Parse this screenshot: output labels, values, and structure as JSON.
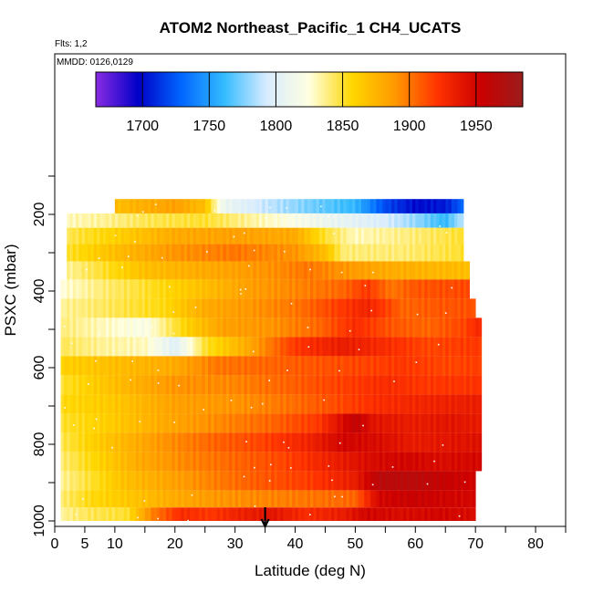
{
  "chart_data": {
    "type": "heatmap",
    "title": "ATOM2 Northeast_Pacific_1 CH4_UCATS",
    "flights_label": "Flts: 1,2",
    "dates_label": "MMDD: 0126,0129",
    "xlabel": "Latitude (deg N)",
    "ylabel": "PSXC (mbar)",
    "xlim": [
      0,
      85
    ],
    "ylim": [
      1000,
      100
    ],
    "x_ticks": [
      0,
      5,
      10,
      20,
      30,
      40,
      50,
      60,
      70,
      80
    ],
    "y_ticks": [
      200,
      400,
      600,
      800,
      1000
    ],
    "colorbar": {
      "range": [
        1665,
        1985
      ],
      "ticks": [
        1700,
        1750,
        1800,
        1850,
        1900,
        1950
      ],
      "colors": [
        "#8a2be2",
        "#0000c8",
        "#0066ff",
        "#33bbff",
        "#d8ecff",
        "#ffffe0",
        "#ffd700",
        "#ff9900",
        "#ff3300",
        "#cc0000",
        "#9b1c1c"
      ]
    },
    "arrow_latitude": 35,
    "rows": [
      {
        "p": 180,
        "lat": [
          10,
          68
        ],
        "vals": [
          [
            10,
            1870
          ],
          [
            15,
            1878
          ],
          [
            20,
            1885
          ],
          [
            25,
            1870
          ],
          [
            28,
            1810
          ],
          [
            35,
            1790
          ],
          [
            42,
            1775
          ],
          [
            50,
            1760
          ],
          [
            55,
            1720
          ],
          [
            60,
            1700
          ],
          [
            65,
            1705
          ],
          [
            68,
            1730
          ]
        ]
      },
      {
        "p": 215,
        "lat": [
          2,
          68
        ],
        "vals": [
          [
            2,
            1830
          ],
          [
            8,
            1835
          ],
          [
            15,
            1845
          ],
          [
            25,
            1850
          ],
          [
            35,
            1830
          ],
          [
            45,
            1810
          ],
          [
            55,
            1795
          ],
          [
            60,
            1780
          ],
          [
            65,
            1760
          ],
          [
            68,
            1790
          ]
        ]
      },
      {
        "p": 255,
        "lat": [
          2,
          68
        ],
        "vals": [
          [
            2,
            1845
          ],
          [
            10,
            1860
          ],
          [
            20,
            1880
          ],
          [
            30,
            1885
          ],
          [
            40,
            1880
          ],
          [
            45,
            1850
          ],
          [
            50,
            1830
          ],
          [
            60,
            1840
          ],
          [
            68,
            1850
          ]
        ]
      },
      {
        "p": 300,
        "lat": [
          2,
          68
        ],
        "vals": [
          [
            2,
            1850
          ],
          [
            10,
            1870
          ],
          [
            20,
            1890
          ],
          [
            30,
            1900
          ],
          [
            40,
            1890
          ],
          [
            45,
            1870
          ],
          [
            48,
            1840
          ],
          [
            58,
            1840
          ],
          [
            68,
            1850
          ]
        ]
      },
      {
        "p": 345,
        "lat": [
          2,
          69
        ],
        "vals": [
          [
            2,
            1835
          ],
          [
            8,
            1850
          ],
          [
            15,
            1870
          ],
          [
            25,
            1880
          ],
          [
            35,
            1890
          ],
          [
            42,
            1900
          ],
          [
            48,
            1890
          ],
          [
            55,
            1880
          ],
          [
            62,
            1875
          ],
          [
            69,
            1870
          ]
        ]
      },
      {
        "p": 395,
        "lat": [
          1,
          69
        ],
        "vals": [
          [
            1,
            1825
          ],
          [
            8,
            1840
          ],
          [
            15,
            1850
          ],
          [
            25,
            1870
          ],
          [
            32,
            1885
          ],
          [
            40,
            1895
          ],
          [
            48,
            1905
          ],
          [
            52,
            1920
          ],
          [
            56,
            1900
          ],
          [
            60,
            1910
          ],
          [
            69,
            1915
          ]
        ]
      },
      {
        "p": 445,
        "lat": [
          1,
          70
        ],
        "vals": [
          [
            1,
            1835
          ],
          [
            10,
            1845
          ],
          [
            18,
            1855
          ],
          [
            25,
            1880
          ],
          [
            33,
            1890
          ],
          [
            40,
            1900
          ],
          [
            46,
            1915
          ],
          [
            52,
            1930
          ],
          [
            58,
            1905
          ],
          [
            64,
            1910
          ],
          [
            70,
            1912
          ]
        ]
      },
      {
        "p": 495,
        "lat": [
          1,
          71
        ],
        "vals": [
          [
            1,
            1840
          ],
          [
            8,
            1830
          ],
          [
            15,
            1820
          ],
          [
            22,
            1860
          ],
          [
            28,
            1885
          ],
          [
            36,
            1890
          ],
          [
            44,
            1905
          ],
          [
            50,
            1925
          ],
          [
            56,
            1910
          ],
          [
            62,
            1905
          ],
          [
            68,
            1915
          ],
          [
            71,
            1930
          ]
        ]
      },
      {
        "p": 545,
        "lat": [
          1,
          71
        ],
        "vals": [
          [
            1,
            1845
          ],
          [
            8,
            1835
          ],
          [
            15,
            1830
          ],
          [
            20,
            1800
          ],
          [
            25,
            1850
          ],
          [
            32,
            1880
          ],
          [
            40,
            1920
          ],
          [
            48,
            1935
          ],
          [
            55,
            1925
          ],
          [
            62,
            1915
          ],
          [
            71,
            1920
          ]
        ]
      },
      {
        "p": 595,
        "lat": [
          1,
          71
        ],
        "vals": [
          [
            1,
            1860
          ],
          [
            10,
            1870
          ],
          [
            20,
            1880
          ],
          [
            27,
            1900
          ],
          [
            35,
            1905
          ],
          [
            43,
            1910
          ],
          [
            50,
            1915
          ],
          [
            58,
            1920
          ],
          [
            65,
            1915
          ],
          [
            71,
            1918
          ]
        ]
      },
      {
        "p": 645,
        "lat": [
          1,
          71
        ],
        "vals": [
          [
            1,
            1850
          ],
          [
            10,
            1870
          ],
          [
            20,
            1890
          ],
          [
            30,
            1895
          ],
          [
            38,
            1905
          ],
          [
            46,
            1915
          ],
          [
            55,
            1925
          ],
          [
            62,
            1920
          ],
          [
            71,
            1922
          ]
        ]
      },
      {
        "p": 695,
        "lat": [
          1,
          71
        ],
        "vals": [
          [
            1,
            1855
          ],
          [
            10,
            1865
          ],
          [
            20,
            1885
          ],
          [
            30,
            1890
          ],
          [
            38,
            1900
          ],
          [
            46,
            1912
          ],
          [
            54,
            1925
          ],
          [
            62,
            1930
          ],
          [
            71,
            1935
          ]
        ]
      },
      {
        "p": 745,
        "lat": [
          1,
          71
        ],
        "vals": [
          [
            1,
            1850
          ],
          [
            8,
            1860
          ],
          [
            18,
            1880
          ],
          [
            28,
            1895
          ],
          [
            36,
            1905
          ],
          [
            44,
            1920
          ],
          [
            50,
            1960
          ],
          [
            53,
            1940
          ],
          [
            60,
            1935
          ],
          [
            66,
            1940
          ],
          [
            71,
            1935
          ]
        ]
      },
      {
        "p": 795,
        "lat": [
          1,
          71
        ],
        "vals": [
          [
            1,
            1845
          ],
          [
            8,
            1865
          ],
          [
            18,
            1890
          ],
          [
            26,
            1905
          ],
          [
            34,
            1915
          ],
          [
            42,
            1930
          ],
          [
            48,
            1950
          ],
          [
            54,
            1945
          ],
          [
            60,
            1935
          ],
          [
            66,
            1940
          ],
          [
            71,
            1942
          ]
        ]
      },
      {
        "p": 845,
        "lat": [
          1,
          71
        ],
        "vals": [
          [
            1,
            1840
          ],
          [
            6,
            1855
          ],
          [
            14,
            1880
          ],
          [
            22,
            1895
          ],
          [
            30,
            1905
          ],
          [
            38,
            1915
          ],
          [
            45,
            1930
          ],
          [
            52,
            1945
          ],
          [
            58,
            1950
          ],
          [
            64,
            1945
          ],
          [
            71,
            1948
          ]
        ]
      },
      {
        "p": 895,
        "lat": [
          1,
          70
        ],
        "vals": [
          [
            1,
            1835
          ],
          [
            6,
            1850
          ],
          [
            12,
            1870
          ],
          [
            20,
            1885
          ],
          [
            28,
            1900
          ],
          [
            35,
            1910
          ],
          [
            42,
            1918
          ],
          [
            50,
            1935
          ],
          [
            54,
            1965
          ],
          [
            60,
            1965
          ],
          [
            66,
            1955
          ],
          [
            70,
            1950
          ]
        ]
      },
      {
        "p": 945,
        "lat": [
          1,
          70
        ],
        "vals": [
          [
            1,
            1840
          ],
          [
            6,
            1855
          ],
          [
            12,
            1865
          ],
          [
            20,
            1880
          ],
          [
            28,
            1890
          ],
          [
            35,
            1895
          ],
          [
            42,
            1900
          ],
          [
            50,
            1905
          ],
          [
            54,
            1950
          ],
          [
            60,
            1955
          ],
          [
            66,
            1950
          ],
          [
            70,
            1948
          ]
        ]
      },
      {
        "p": 985,
        "lat": [
          1,
          70
        ],
        "vals": [
          [
            1,
            1835
          ],
          [
            6,
            1845
          ],
          [
            12,
            1850
          ],
          [
            16,
            1895
          ],
          [
            21,
            1925
          ],
          [
            26,
            1920
          ],
          [
            30,
            1930
          ],
          [
            36,
            1940
          ],
          [
            42,
            1925
          ],
          [
            48,
            1935
          ],
          [
            52,
            1950
          ],
          [
            58,
            1945
          ],
          [
            64,
            1950
          ],
          [
            70,
            1945
          ]
        ]
      }
    ]
  }
}
